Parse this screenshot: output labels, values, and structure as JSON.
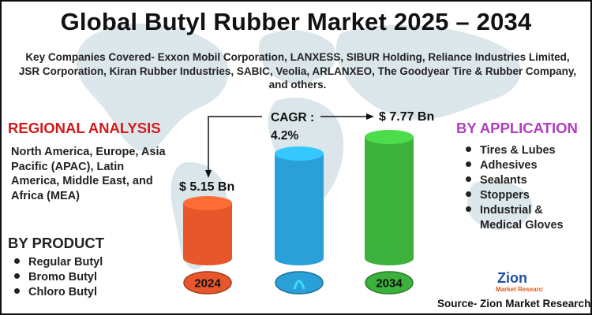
{
  "title": "Global Butyl Rubber Market 2025 – 2034",
  "companies": "Key Companies Covered- Exxon Mobil Corporation, LANXESS, SIBUR Holding, Reliance Industries Limited, JSR Corporation, Kiran Rubber Industries, SABIC, Veolia, ARLANXEO, The Goodyear Tire & Rubber Company, and others.",
  "regional": {
    "heading": "REGIONAL ANALYSIS",
    "text": "North America, Europe, Asia Pacific (APAC), Latin America, Middle East, and Africa (MEA)"
  },
  "product": {
    "heading": "BY PRODUCT",
    "items": [
      "Regular Butyl",
      "Bromo Butyl",
      "Chloro Butyl"
    ]
  },
  "application": {
    "heading": "BY APPLICATION",
    "items": [
      "Tires & Lubes",
      "Adhesives",
      "Sealants",
      "Stoppers",
      "Industrial &",
      "Medical Gloves"
    ]
  },
  "source": "Source- Zion Market Research",
  "logo": {
    "line1": "Zion",
    "line2": "Market Research"
  },
  "colors": {
    "title": "#111111",
    "regional_heading": "#d11a1a",
    "application_heading": "#b13dc1",
    "bar_2024": "#e8572c",
    "bar_mid": "#2a9fd8",
    "bar_2034": "#3cb13c"
  },
  "chart_data": {
    "type": "bar",
    "categories": [
      "2024",
      "",
      "2034"
    ],
    "values": [
      5.15,
      null,
      7.77
    ],
    "value_labels": [
      "$ 5.15 Bn",
      "",
      "$ 7.77 Bn"
    ],
    "cagr_label": "CAGR :",
    "cagr_value": "4.2%",
    "unit": "Bn"
  }
}
